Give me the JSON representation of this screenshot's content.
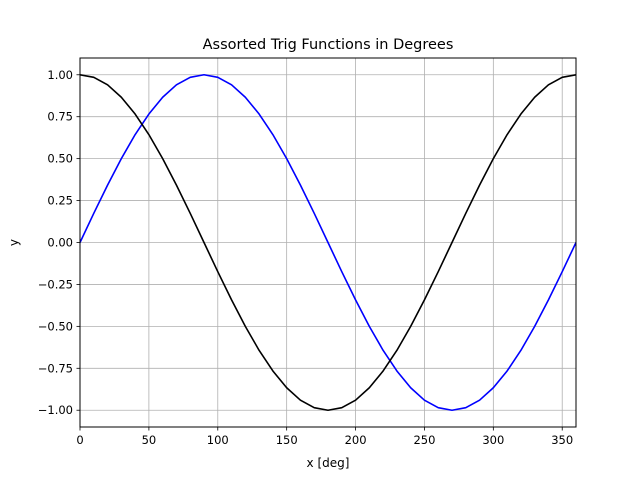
{
  "chart_data": {
    "type": "line",
    "title": "Assorted Trig Functions in Degrees",
    "xlabel": "x [deg]",
    "ylabel": "y",
    "xlim": [
      0,
      360
    ],
    "ylim": [
      -1.1,
      1.1
    ],
    "x_ticks": [
      0,
      50,
      100,
      150,
      200,
      250,
      300,
      350
    ],
    "y_ticks": [
      -1.0,
      -0.75,
      -0.5,
      -0.25,
      0.0,
      0.25,
      0.5,
      0.75,
      1.0
    ],
    "x_tick_labels": [
      "0",
      "50",
      "100",
      "150",
      "200",
      "250",
      "300",
      "350"
    ],
    "y_tick_labels": [
      "−1.00",
      "−0.75",
      "−0.50",
      "−0.25",
      "0.00",
      "0.25",
      "0.50",
      "0.75",
      "1.00"
    ],
    "grid": true,
    "legend": "none",
    "x": [
      0,
      10,
      20,
      30,
      40,
      50,
      60,
      70,
      80,
      90,
      100,
      110,
      120,
      130,
      140,
      150,
      160,
      170,
      180,
      190,
      200,
      210,
      220,
      230,
      240,
      250,
      260,
      270,
      280,
      290,
      300,
      310,
      320,
      330,
      340,
      350,
      360
    ],
    "series": [
      {
        "color": "#0000ff",
        "values": [
          0.0,
          0.174,
          0.342,
          0.5,
          0.643,
          0.766,
          0.866,
          0.94,
          0.985,
          1.0,
          0.985,
          0.94,
          0.866,
          0.766,
          0.643,
          0.5,
          0.342,
          0.174,
          0.0,
          -0.174,
          -0.342,
          -0.5,
          -0.643,
          -0.766,
          -0.866,
          -0.94,
          -0.985,
          -1.0,
          -0.985,
          -0.94,
          -0.866,
          -0.766,
          -0.643,
          -0.5,
          -0.342,
          -0.174,
          0.0
        ]
      },
      {
        "color": "#000000",
        "values": [
          1.0,
          0.985,
          0.94,
          0.866,
          0.766,
          0.643,
          0.5,
          0.342,
          0.174,
          0.0,
          -0.174,
          -0.342,
          -0.5,
          -0.643,
          -0.766,
          -0.866,
          -0.94,
          -0.985,
          -1.0,
          -0.985,
          -0.94,
          -0.866,
          -0.766,
          -0.643,
          -0.5,
          -0.342,
          -0.174,
          0.0,
          0.174,
          0.342,
          0.5,
          0.643,
          0.766,
          0.866,
          0.94,
          0.985,
          1.0
        ]
      }
    ]
  }
}
